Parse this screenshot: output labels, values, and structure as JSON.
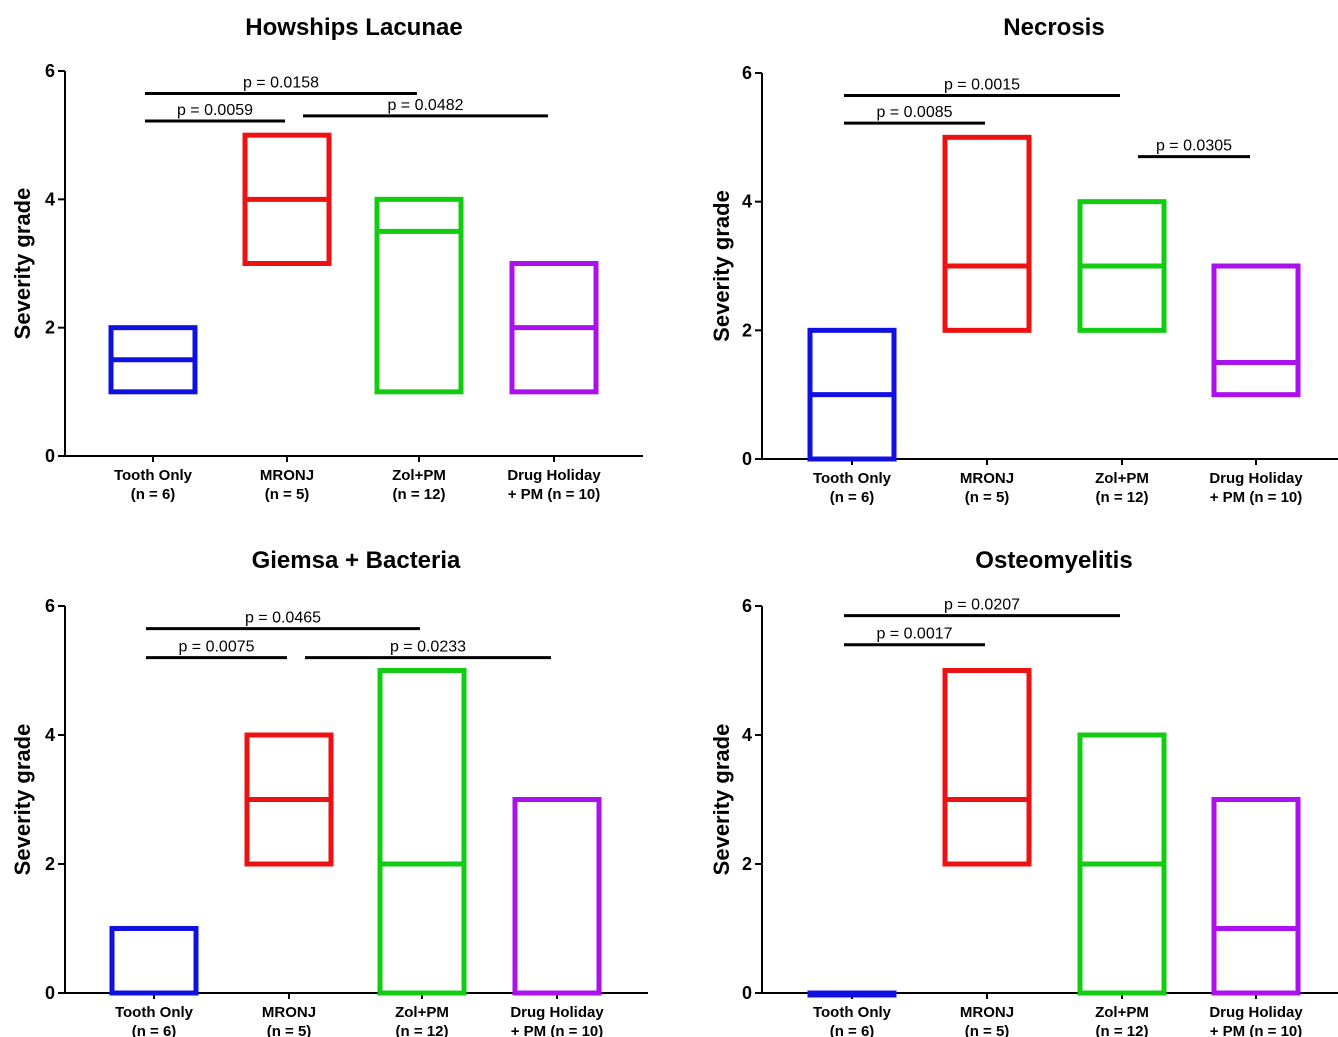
{
  "chart_data": [
    {
      "type": "floating-bar",
      "title": "Howships Lacunae",
      "ylabel": "Severity grade",
      "ylim": [
        0,
        6
      ],
      "yticks": [
        "0",
        "2",
        "4",
        "6"
      ],
      "categories": [
        {
          "line1": "Tooth Only",
          "line2": "(n = 6)"
        },
        {
          "line1": "MRONJ",
          "line2": "(n = 5)"
        },
        {
          "line1": "Zol+PM",
          "line2": "(n = 12)"
        },
        {
          "line1": "Drug Holiday",
          "line2": "+ PM (n = 10)"
        }
      ],
      "colors": [
        "#1010e0",
        "#ee1111",
        "#11cc11",
        "#aa11ee"
      ],
      "boxes": [
        {
          "min": 1,
          "max": 2,
          "median": 1.5
        },
        {
          "min": 3,
          "max": 5,
          "median": 4
        },
        {
          "min": 1,
          "max": 4,
          "median": 3.5
        },
        {
          "min": 1,
          "max": 3,
          "median": 2
        }
      ],
      "comparisons": [
        {
          "from": 0,
          "to": 2,
          "level": 5.65,
          "label": "p = 0.0158"
        },
        {
          "from": 0,
          "to": 1,
          "level": 5.22,
          "label": "p = 0.0059"
        },
        {
          "from": 1,
          "to": 3,
          "level": 5.3,
          "label": "p = 0.0482"
        }
      ]
    },
    {
      "type": "floating-bar",
      "title": "Necrosis",
      "ylabel": "Severity grade",
      "ylim": [
        0,
        6
      ],
      "yticks": [
        "0",
        "2",
        "4",
        "6"
      ],
      "categories": [
        {
          "line1": "Tooth Only",
          "line2": "(n = 6)"
        },
        {
          "line1": "MRONJ",
          "line2": "(n = 5)"
        },
        {
          "line1": "Zol+PM",
          "line2": "(n = 12)"
        },
        {
          "line1": "Drug Holiday",
          "line2": "+ PM (n = 10)"
        }
      ],
      "colors": [
        "#1010e0",
        "#ee1111",
        "#11cc11",
        "#aa11ee"
      ],
      "boxes": [
        {
          "min": 0,
          "max": 2,
          "median": 1
        },
        {
          "min": 2,
          "max": 5,
          "median": 3
        },
        {
          "min": 2,
          "max": 4,
          "median": 3
        },
        {
          "min": 1,
          "max": 3,
          "median": 1.5
        }
      ],
      "comparisons": [
        {
          "from": 0,
          "to": 2,
          "level": 5.65,
          "label": "p = 0.0015"
        },
        {
          "from": 0,
          "to": 1,
          "level": 5.22,
          "label": "p = 0.0085"
        },
        {
          "from": 2,
          "to": 3,
          "level": 4.7,
          "label": "p = 0.0305"
        }
      ]
    },
    {
      "type": "floating-bar",
      "title": "Giemsa + Bacteria",
      "ylabel": "Severity grade",
      "ylim": [
        0,
        6
      ],
      "yticks": [
        "0",
        "2",
        "4",
        "6"
      ],
      "categories": [
        {
          "line1": "Tooth Only",
          "line2": "(n = 6)"
        },
        {
          "line1": "MRONJ",
          "line2": "(n = 5)"
        },
        {
          "line1": "Zol+PM",
          "line2": "(n = 12)"
        },
        {
          "line1": "Drug Holiday",
          "line2": "+ PM (n = 10)"
        }
      ],
      "colors": [
        "#1010e0",
        "#ee1111",
        "#11cc11",
        "#aa11ee"
      ],
      "boxes": [
        {
          "min": 0,
          "max": 1,
          "median": null
        },
        {
          "min": 2,
          "max": 4,
          "median": 3
        },
        {
          "min": 0,
          "max": 5,
          "median": 2
        },
        {
          "min": 0,
          "max": 3,
          "median": null
        }
      ],
      "comparisons": [
        {
          "from": 0,
          "to": 2,
          "level": 5.65,
          "label": "p = 0.0465"
        },
        {
          "from": 0,
          "to": 1,
          "level": 5.2,
          "label": "p = 0.0075"
        },
        {
          "from": 1,
          "to": 3,
          "level": 5.2,
          "label": "p = 0.0233"
        }
      ]
    },
    {
      "type": "floating-bar",
      "title": "Osteomyelitis",
      "ylabel": "Severity grade",
      "ylim": [
        0,
        6
      ],
      "yticks": [
        "0",
        "2",
        "4",
        "6"
      ],
      "categories": [
        {
          "line1": "Tooth Only",
          "line2": "(n = 6)"
        },
        {
          "line1": "MRONJ",
          "line2": "(n = 5)"
        },
        {
          "line1": "Zol+PM",
          "line2": "(n = 12)"
        },
        {
          "line1": "Drug Holiday",
          "line2": "+ PM (n = 10)"
        }
      ],
      "colors": [
        "#1010e0",
        "#ee1111",
        "#11cc11",
        "#aa11ee"
      ],
      "boxes": [
        {
          "min": 0,
          "max": 0,
          "median": null
        },
        {
          "min": 2,
          "max": 5,
          "median": 3
        },
        {
          "min": 0,
          "max": 4,
          "median": 2
        },
        {
          "min": 0,
          "max": 3,
          "median": 1
        }
      ],
      "comparisons": [
        {
          "from": 0,
          "to": 2,
          "level": 5.85,
          "label": "p = 0.0207"
        },
        {
          "from": 0,
          "to": 1,
          "level": 5.4,
          "label": "p = 0.0017"
        }
      ]
    }
  ]
}
